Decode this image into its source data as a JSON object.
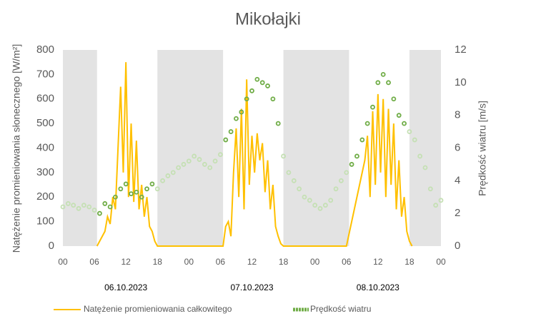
{
  "chart_data": {
    "type": "line",
    "title": "Mikołajki",
    "y_label": "Natężenie promieniowania słonecznego [W/m²]",
    "y2_label": "Prędkość wiatru [m/s]",
    "xlim": [
      0,
      72
    ],
    "xticks": [
      {
        "value": 0,
        "label": "00"
      },
      {
        "value": 6,
        "label": "06"
      },
      {
        "value": 12,
        "label": "12"
      },
      {
        "value": 18,
        "label": "18"
      },
      {
        "value": 24,
        "label": "00"
      },
      {
        "value": 30,
        "label": "06"
      },
      {
        "value": 36,
        "label": "12"
      },
      {
        "value": 42,
        "label": "18"
      },
      {
        "value": 48,
        "label": "00"
      },
      {
        "value": 54,
        "label": "06"
      },
      {
        "value": 60,
        "label": "12"
      },
      {
        "value": 66,
        "label": "18"
      },
      {
        "value": 72,
        "label": "00"
      }
    ],
    "date_labels": [
      {
        "value": 12,
        "label": "06.10.2023"
      },
      {
        "value": 36,
        "label": "07.10.2023"
      },
      {
        "value": 60,
        "label": "08.10.2023"
      }
    ],
    "shaded_ranges": [
      [
        0,
        6.5
      ],
      [
        18,
        30.5
      ],
      [
        42,
        54.5
      ],
      [
        66,
        72
      ]
    ],
    "shade_color": "#e3e3e3",
    "ylim": [
      0,
      800
    ],
    "yticks": [
      0,
      100,
      200,
      300,
      400,
      500,
      600,
      700,
      800
    ],
    "y2lim": [
      0,
      12
    ],
    "y2ticks": [
      0,
      2,
      4,
      6,
      8,
      10,
      12
    ],
    "series": [
      {
        "name": "Natężenie promieniowania całkowitego",
        "color": "#ffc000",
        "kind": "line",
        "x": [
          6.5,
          7,
          8,
          8.5,
          9,
          9.5,
          10,
          10.5,
          11,
          11.5,
          12,
          12.5,
          13,
          13.5,
          14,
          14.5,
          15,
          15.5,
          16,
          16.5,
          17,
          17.5,
          18,
          30.5,
          31,
          31.5,
          32,
          32.5,
          33,
          33.5,
          34,
          34.5,
          35,
          35.5,
          36,
          36.5,
          37,
          37.5,
          38,
          38.5,
          39,
          39.5,
          40,
          40.5,
          41,
          41.5,
          42,
          54,
          55,
          56,
          57,
          57.5,
          58,
          58.5,
          59,
          59.5,
          60,
          60.5,
          61,
          61.5,
          62,
          62.5,
          63,
          63.5,
          64,
          64.5,
          65,
          65.5,
          66,
          66.5
        ],
        "values": [
          0,
          20,
          60,
          120,
          90,
          200,
          150,
          400,
          650,
          300,
          750,
          200,
          500,
          180,
          430,
          150,
          250,
          120,
          200,
          80,
          60,
          20,
          0,
          0,
          80,
          100,
          40,
          300,
          480,
          200,
          560,
          150,
          680,
          250,
          450,
          300,
          460,
          350,
          420,
          220,
          350,
          150,
          250,
          80,
          40,
          10,
          0,
          0,
          100,
          200,
          300,
          350,
          450,
          200,
          550,
          250,
          620,
          300,
          600,
          200,
          560,
          250,
          500,
          150,
          350,
          120,
          200,
          60,
          20,
          0
        ]
      },
      {
        "name": "Prędkość wiatru",
        "color": "#70ad47",
        "night_color": "#c5e0b4",
        "kind": "scatter",
        "axis": "y2",
        "x": [
          0,
          1,
          2,
          3,
          4,
          5,
          6,
          7,
          8,
          9,
          10,
          11,
          12,
          13,
          14,
          15,
          16,
          17,
          18,
          19,
          20,
          21,
          22,
          23,
          24,
          25,
          26,
          27,
          28,
          29,
          30,
          31,
          32,
          33,
          34,
          35,
          36,
          37,
          38,
          39,
          40,
          41,
          42,
          43,
          44,
          45,
          46,
          47,
          48,
          49,
          50,
          51,
          52,
          53,
          54,
          55,
          56,
          57,
          58,
          59,
          60,
          61,
          62,
          63,
          64,
          65,
          66,
          67,
          68,
          69,
          70,
          71,
          72
        ],
        "values": [
          2.4,
          2.6,
          2.5,
          2.3,
          2.5,
          2.4,
          2.2,
          2.0,
          2.6,
          2.4,
          3.0,
          3.5,
          3.8,
          3.2,
          3.3,
          3.0,
          3.5,
          3.8,
          3.5,
          4.0,
          4.3,
          4.5,
          4.8,
          5.0,
          5.2,
          5.5,
          5.3,
          5.0,
          4.8,
          5.2,
          5.6,
          6.5,
          7.0,
          7.8,
          8.2,
          9.0,
          9.5,
          10.2,
          10.0,
          9.8,
          9.0,
          7.5,
          5.5,
          4.5,
          4.0,
          3.5,
          3.0,
          2.8,
          2.5,
          2.3,
          2.5,
          2.8,
          3.5,
          4.0,
          4.5,
          5.0,
          5.5,
          6.5,
          7.5,
          8.5,
          10.0,
          10.5,
          10.0,
          9.0,
          8.0,
          7.5,
          7.0,
          6.5,
          5.5,
          4.8,
          3.5,
          2.5,
          2.8
        ]
      }
    ]
  }
}
